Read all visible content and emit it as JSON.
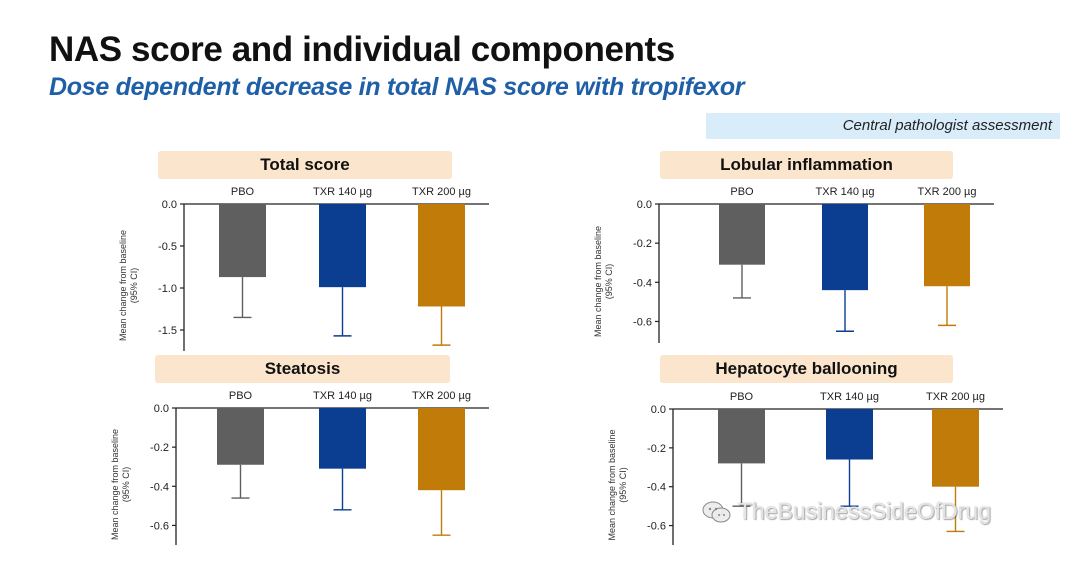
{
  "title": "NAS score and individual components",
  "subtitle": "Dose dependent decrease in total NAS score with tropifexor",
  "assessment_label": "Central pathologist assessment",
  "watermark": "TheBusinessSideOfDrug",
  "chart_data": [
    {
      "type": "bar",
      "title": "Total score",
      "ylabel": "Mean change from baseline (95% CI)",
      "categories": [
        "PBO",
        "TXR 140 µg",
        "TXR 200 µg"
      ],
      "values": [
        -0.87,
        -0.99,
        -1.22
      ],
      "ci_lower": [
        -1.35,
        -1.57,
        -1.68
      ],
      "ylim": [
        -1.75,
        0
      ],
      "yticks": [
        "0.0",
        "-0.5",
        "-1.0",
        "-1.5"
      ],
      "ytick_values": [
        0,
        -0.5,
        -1.0,
        -1.5
      ]
    },
    {
      "type": "bar",
      "title": "Lobular inflammation",
      "ylabel": "Mean change from baseline (95% CI)",
      "categories": [
        "PBO",
        "TXR 140 µg",
        "TXR 200 µg"
      ],
      "values": [
        -0.31,
        -0.44,
        -0.42
      ],
      "ci_lower": [
        -0.48,
        -0.65,
        -0.62
      ],
      "ylim": [
        -0.71,
        0
      ],
      "yticks": [
        "0.0",
        "-0.2",
        "-0.4",
        "-0.6"
      ],
      "ytick_values": [
        0,
        -0.2,
        -0.4,
        -0.6
      ]
    },
    {
      "type": "bar",
      "title": "Steatosis",
      "ylabel": "Mean change from baseline (95% CI)",
      "categories": [
        "PBO",
        "TXR 140 µg",
        "TXR 200 µg"
      ],
      "values": [
        -0.29,
        -0.31,
        -0.42
      ],
      "ci_lower": [
        -0.46,
        -0.52,
        -0.65
      ],
      "ylim": [
        -0.7,
        0
      ],
      "yticks": [
        "0.0",
        "-0.2",
        "-0.4",
        "-0.6"
      ],
      "ytick_values": [
        0,
        -0.2,
        -0.4,
        -0.6
      ]
    },
    {
      "type": "bar",
      "title": "Hepatocyte ballooning",
      "ylabel": "Mean change from baseline (95% CI)",
      "categories": [
        "PBO",
        "TXR 140 µg",
        "TXR 200 µg"
      ],
      "values": [
        -0.28,
        -0.26,
        -0.4
      ],
      "ci_lower": [
        -0.5,
        -0.5,
        -0.63
      ],
      "ylim": [
        -0.7,
        0
      ],
      "yticks": [
        "0.0",
        "-0.2",
        "-0.4",
        "-0.6"
      ],
      "ytick_values": [
        0,
        -0.2,
        -0.4,
        -0.6
      ]
    }
  ],
  "colors": {
    "pbo": "#5f5f5f",
    "txr140": "#0b3d91",
    "txr200": "#c07b09",
    "title_box": "#fbe5cd",
    "assessment_box": "#d9ecfa",
    "subtitle": "#1f5fa8"
  },
  "icons": {
    "watermark": "wechat-icon"
  }
}
